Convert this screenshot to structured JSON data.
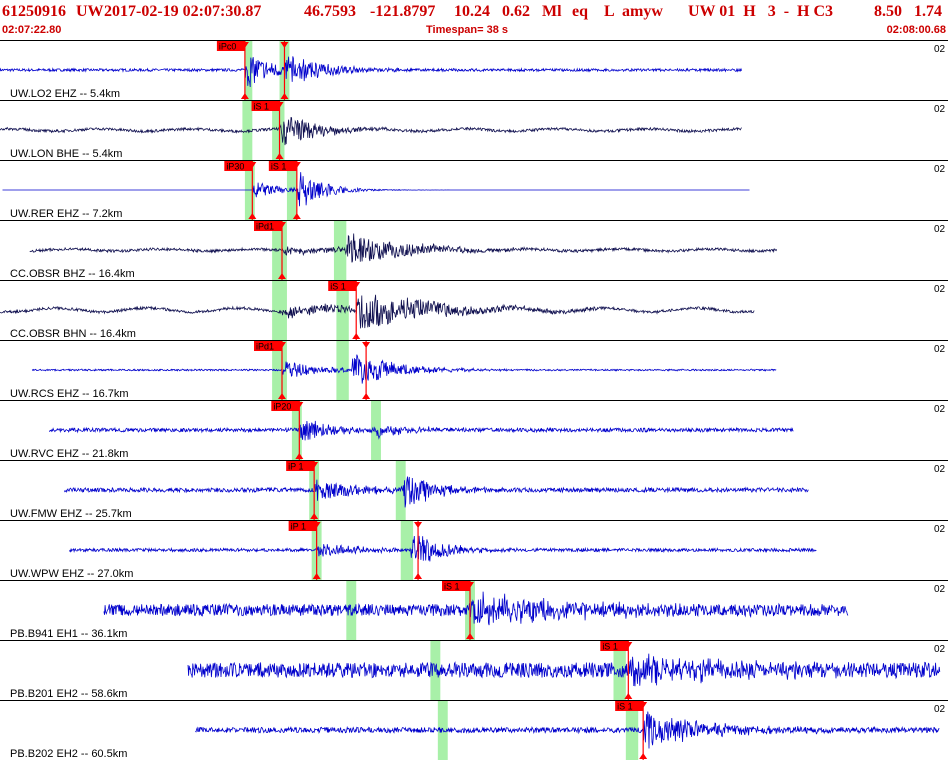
{
  "header": {
    "event_id": "61250916",
    "network": "UW",
    "origin_time": "2017-02-19 02:07:30.87",
    "lat": "46.7593",
    "lon": "-121.8797",
    "depth": "10.24",
    "mag": "0.62",
    "mag_type": "Ml",
    "event_type": "eq",
    "quality": "L",
    "source": "amyw",
    "tail": "UW 01  H   3  -  H C3",
    "value1": "8.50",
    "value2": "1.74",
    "start_time": "02:07:22.80",
    "timespan": "Timespan=  38 s",
    "end_time": "02:08:00.68"
  },
  "colors": {
    "header_text": "#cc0000",
    "trace_blue": "#0000cc",
    "trace_dark": "#101050",
    "pick_red": "#ff0000",
    "window_green": "#a8f0a8",
    "divider": "#000000"
  },
  "chart_data": {
    "type": "line",
    "x_start": "02:07:22.80",
    "x_end": "02:08:00.68",
    "timespan_s": 38,
    "xlim": [
      0,
      38
    ],
    "panels": [
      {
        "label": "UW.LO2 EHZ -- 5.4km",
        "channel": "02",
        "color": "blue",
        "trace_start": 0.0,
        "trace_end": 30.0,
        "noise_amp": 0.05,
        "noise_wave": 0,
        "events": [
          {
            "t": 9.9,
            "amp": 0.7,
            "decay": 1.2
          },
          {
            "t": 11.5,
            "amp": 0.55,
            "decay": 1.6
          }
        ],
        "picks": [
          {
            "label": "iPc0",
            "t": 9.9,
            "wave": "P"
          },
          {
            "label": "",
            "t": 11.5,
            "wave": "S"
          }
        ],
        "windows": [
          [
            9.9,
            10.2
          ],
          [
            11.3,
            11.7
          ]
        ]
      },
      {
        "label": "UW.LON BHE -- 5.4km",
        "channel": "02",
        "color": "dark",
        "trace_start": 0.0,
        "trace_end": 30.0,
        "noise_amp": 0.05,
        "noise_wave": 0.07,
        "events": [
          {
            "t": 11.3,
            "amp": 0.75,
            "decay": 1.3
          }
        ],
        "picks": [
          {
            "label": "iS 1",
            "t": 11.3,
            "wave": "S"
          }
        ],
        "windows": [
          [
            9.8,
            10.2
          ],
          [
            11.0,
            11.5
          ]
        ]
      },
      {
        "label": "UW.RER EHZ -- 7.2km",
        "channel": "02",
        "color": "blue",
        "trace_start": 0.1,
        "trace_end": 30.3,
        "noise_amp": 0.0,
        "noise_wave": 0,
        "events": [
          {
            "t": 10.2,
            "amp": 0.35,
            "decay": 1.2
          },
          {
            "t": 12.0,
            "amp": 0.8,
            "decay": 1.0
          }
        ],
        "picks": [
          {
            "label": "iP30",
            "t": 10.2,
            "wave": "P"
          },
          {
            "label": "iS 1",
            "t": 12.0,
            "wave": "S"
          }
        ],
        "windows": [
          [
            9.9,
            10.3
          ],
          [
            11.6,
            12.0
          ]
        ]
      },
      {
        "label": "CC.OBSR BHZ -- 16.4km",
        "channel": "02",
        "color": "dark",
        "trace_start": 1.2,
        "trace_end": 31.4,
        "noise_amp": 0.05,
        "noise_wave": 0.06,
        "events": [
          {
            "t": 11.4,
            "amp": 0.15,
            "decay": 2.5
          },
          {
            "t": 13.9,
            "amp": 0.65,
            "decay": 2.5
          }
        ],
        "picks": [
          {
            "label": "iPd1",
            "t": 11.4,
            "wave": "P"
          }
        ],
        "windows": [
          [
            11.0,
            11.6
          ],
          [
            13.5,
            14.0
          ]
        ]
      },
      {
        "label": "CC.OBSR BHN -- 16.4km",
        "channel": "02",
        "color": "dark",
        "trace_start": 0.0,
        "trace_end": 30.5,
        "noise_amp": 0.05,
        "noise_wave": 0.12,
        "events": [
          {
            "t": 11.4,
            "amp": 0.25,
            "decay": 3.0
          },
          {
            "t": 14.4,
            "amp": 0.75,
            "decay": 3.0
          }
        ],
        "picks": [
          {
            "label": "iS 1",
            "t": 14.4,
            "wave": "S"
          }
        ],
        "windows": [
          [
            11.0,
            11.6
          ],
          [
            13.6,
            14.1
          ]
        ]
      },
      {
        "label": "UW.RCS EHZ -- 16.7km",
        "channel": "02",
        "color": "blue",
        "trace_start": 1.3,
        "trace_end": 31.4,
        "noise_amp": 0.03,
        "noise_wave": 0,
        "events": [
          {
            "t": 11.4,
            "amp": 0.35,
            "decay": 1.5
          },
          {
            "t": 14.2,
            "amp": 0.75,
            "decay": 1.6
          }
        ],
        "picks": [
          {
            "label": "iPd1",
            "t": 11.4,
            "wave": "P"
          },
          {
            "label": "",
            "t": 14.8,
            "wave": "S"
          }
        ],
        "windows": [
          [
            11.0,
            11.6
          ],
          [
            13.6,
            14.1
          ]
        ]
      },
      {
        "label": "UW.RVC EHZ -- 21.8km",
        "channel": "02",
        "color": "blue",
        "trace_start": 2.0,
        "trace_end": 32.1,
        "noise_amp": 0.07,
        "noise_wave": 0,
        "events": [
          {
            "t": 12.1,
            "amp": 0.5,
            "decay": 1.2
          },
          {
            "t": 15.1,
            "amp": 0.3,
            "decay": 1.4
          }
        ],
        "picks": [
          {
            "label": "iP20",
            "t": 12.1,
            "wave": "P"
          }
        ],
        "windows": [
          [
            11.8,
            12.2
          ],
          [
            15.0,
            15.4
          ]
        ]
      },
      {
        "label": "UW.FMW EHZ -- 25.7km",
        "channel": "02",
        "color": "blue",
        "trace_start": 2.6,
        "trace_end": 32.7,
        "noise_amp": 0.08,
        "noise_wave": 0,
        "events": [
          {
            "t": 12.7,
            "amp": 0.45,
            "decay": 1.6
          },
          {
            "t": 16.3,
            "amp": 0.8,
            "decay": 1.1
          }
        ],
        "picks": [
          {
            "label": "iP 1",
            "t": 12.7,
            "wave": "P"
          }
        ],
        "windows": [
          [
            12.5,
            12.9
          ],
          [
            16.0,
            16.4
          ]
        ]
      },
      {
        "label": "UW.WPW EHZ -- 27.0km",
        "channel": "02",
        "color": "blue",
        "trace_start": 2.8,
        "trace_end": 33.0,
        "noise_amp": 0.06,
        "noise_wave": 0,
        "events": [
          {
            "t": 12.8,
            "amp": 0.3,
            "decay": 1.5
          },
          {
            "t": 16.6,
            "amp": 0.85,
            "decay": 1.1
          }
        ],
        "picks": [
          {
            "label": "iP 1",
            "t": 12.8,
            "wave": "P"
          },
          {
            "label": "",
            "t": 16.9,
            "wave": "S"
          }
        ],
        "windows": [
          [
            12.6,
            13.0
          ],
          [
            16.2,
            16.7
          ]
        ]
      },
      {
        "label": "PB.B941 EH1 -- 36.1km",
        "channel": "02",
        "color": "blue",
        "trace_start": 4.2,
        "trace_end": 34.3,
        "noise_amp": 0.22,
        "noise_wave": 0,
        "events": [
          {
            "t": 19.0,
            "amp": 0.55,
            "decay": 4.0
          }
        ],
        "picks": [
          {
            "label": "iS 1",
            "t": 19.0,
            "wave": "S"
          }
        ],
        "windows": [
          [
            14.0,
            14.4
          ],
          [
            18.8,
            19.2
          ]
        ]
      },
      {
        "label": "PB.B201 EH2 -- 58.6km",
        "channel": "02",
        "color": "blue",
        "trace_start": 7.6,
        "trace_end": 38.0,
        "noise_amp": 0.28,
        "noise_wave": 0,
        "events": [
          {
            "t": 25.4,
            "amp": 0.5,
            "decay": 4.0
          }
        ],
        "picks": [
          {
            "label": "iS 1",
            "t": 25.4,
            "wave": "S"
          }
        ],
        "windows": [
          [
            17.4,
            17.8
          ],
          [
            24.8,
            25.3
          ]
        ]
      },
      {
        "label": "PB.B202 EH2 -- 60.5km",
        "channel": "02",
        "color": "blue",
        "trace_start": 7.9,
        "trace_end": 38.0,
        "noise_amp": 0.1,
        "noise_wave": 0,
        "events": [
          {
            "t": 26.0,
            "amp": 0.7,
            "decay": 2.5
          }
        ],
        "picks": [
          {
            "label": "iS 1",
            "t": 26.0,
            "wave": "S"
          }
        ],
        "windows": [
          [
            17.7,
            18.1
          ],
          [
            25.3,
            25.8
          ]
        ]
      }
    ]
  }
}
